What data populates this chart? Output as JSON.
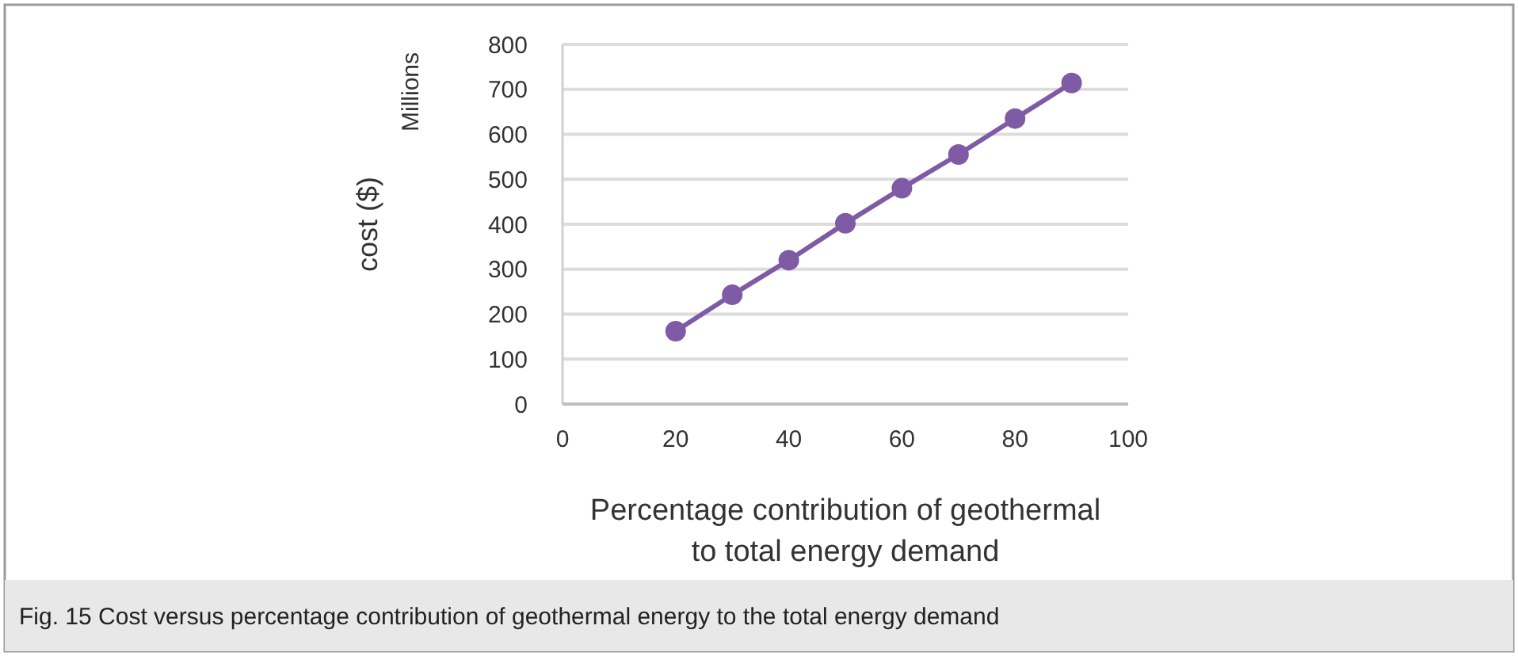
{
  "chart_data": {
    "type": "line",
    "xlabel": "Percentage contribution of geothermal\nto total energy demand",
    "ylabel": "cost ($)",
    "annotations": [
      "Millions",
      "Fig. 15  Cost versus percentage contribution of geothermal energy to the total energy demand"
    ],
    "x": [
      20,
      30,
      40,
      50,
      60,
      70,
      80,
      90
    ],
    "series": [
      {
        "color": "#7f5ba6",
        "values": [
          162,
          243,
          320,
          402,
          480,
          555,
          635,
          714
        ]
      }
    ],
    "xlim": [
      0,
      100
    ],
    "xticks": [
      0,
      20,
      40,
      60,
      80,
      100
    ],
    "ylim": [
      0,
      800
    ],
    "yticks": [
      0,
      100,
      200,
      300,
      400,
      500,
      600,
      700,
      800
    ],
    "grid": "y",
    "marker": "circle",
    "line_style": "solid"
  }
}
